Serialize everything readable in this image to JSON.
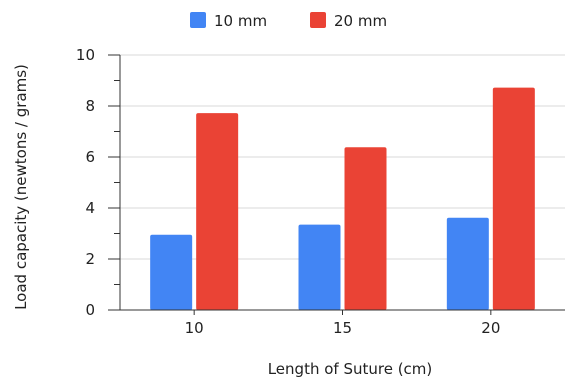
{
  "chart_data": {
    "type": "bar",
    "title": "",
    "xlabel": "Length of Suture (cm)",
    "ylabel": "Load capacity (newtons / grams)",
    "categories": [
      "10",
      "15",
      "20"
    ],
    "series": [
      {
        "name": "10 mm",
        "color": "#4285f4",
        "values": [
          2.95,
          3.35,
          3.62
        ]
      },
      {
        "name": "20 mm",
        "color": "#ea4335",
        "values": [
          7.72,
          6.38,
          8.72
        ]
      }
    ],
    "ylim": [
      0,
      10
    ],
    "yticks": [
      "0",
      "2",
      "4",
      "6",
      "8",
      "10"
    ],
    "grid": true,
    "legend_position": "top-center"
  }
}
